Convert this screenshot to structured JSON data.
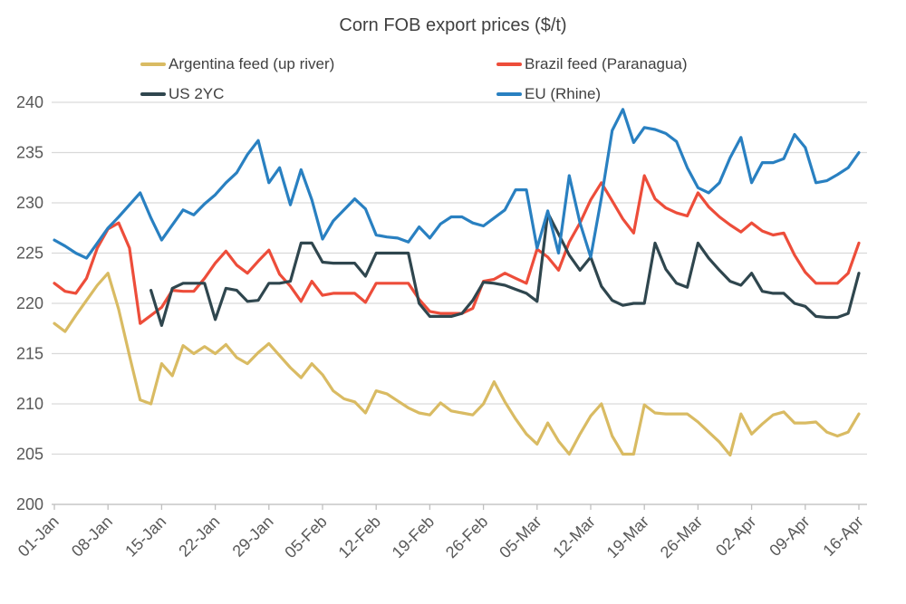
{
  "title": "Corn FOB export prices ($/t)",
  "chart_data": {
    "type": "line",
    "title": "Corn FOB export prices ($/t)",
    "x_tick_labels": [
      "01-Jan",
      "08-Jan",
      "15-Jan",
      "22-Jan",
      "29-Jan",
      "05-Feb",
      "12-Feb",
      "19-Feb",
      "26-Feb",
      "05-Mar",
      "12-Mar",
      "19-Mar",
      "26-Mar",
      "02-Apr",
      "09-Apr",
      "16-Apr"
    ],
    "points_per_tick": 5,
    "ylim": [
      200,
      240
    ],
    "y_ticks": [
      200,
      205,
      210,
      215,
      220,
      225,
      230,
      235,
      240
    ],
    "grid": "horizontal",
    "legend_position": "top",
    "axis_text_color": "#595959",
    "gridline_color": "#d9d9d9",
    "axis_line_color": "#bfbfbf",
    "series": [
      {
        "name": "Argentina feed (up river)",
        "color": "#d9bb63",
        "values": [
          218,
          217.2,
          218.8,
          220.3,
          221.8,
          223,
          219.4,
          214.8,
          210.4,
          210,
          214,
          212.8,
          215.8,
          215,
          215.7,
          215,
          215.9,
          214.6,
          214,
          215.1,
          216,
          214.8,
          213.6,
          212.6,
          214,
          212.9,
          211.3,
          210.5,
          210.2,
          209.1,
          211.3,
          211,
          210.3,
          209.6,
          209.1,
          208.9,
          210.1,
          209.3,
          209.1,
          208.9,
          210,
          212.2,
          210.2,
          208.5,
          207,
          206,
          208.1,
          206.3,
          205,
          207,
          208.8,
          210,
          206.8,
          205,
          205,
          209.9,
          209.1,
          209,
          209,
          209,
          208.2,
          207.2,
          206.2,
          204.9,
          209,
          207,
          208,
          208.9,
          209.2,
          208.1,
          208.1,
          208.2,
          207.2,
          206.8,
          207.2,
          209
        ]
      },
      {
        "name": "Brazil feed (Paranagua)",
        "color": "#ed4d3a",
        "values": [
          222,
          221.2,
          221,
          222.5,
          225.5,
          227.4,
          228,
          225.5,
          218,
          218.8,
          219.6,
          221.3,
          221.2,
          221.2,
          222.5,
          224,
          225.2,
          223.8,
          223,
          224.2,
          225.3,
          222.9,
          221.7,
          220.2,
          222.2,
          220.8,
          221,
          221,
          221,
          220.1,
          222,
          222,
          222,
          222,
          220.4,
          219.2,
          219,
          219,
          219,
          219.5,
          222.2,
          222.4,
          223,
          222.5,
          222,
          225.4,
          224.6,
          223.3,
          226.1,
          228,
          230.3,
          232,
          230.2,
          228.4,
          227,
          232.7,
          230.4,
          229.5,
          229,
          228.7,
          231,
          229.6,
          228.6,
          227.8,
          227.1,
          228,
          227.2,
          226.8,
          227,
          224.8,
          223.1,
          222,
          222,
          222,
          223,
          226
        ]
      },
      {
        "name": "US 2YC",
        "color": "#2f464e",
        "values": [
          null,
          null,
          null,
          null,
          null,
          null,
          null,
          null,
          null,
          221.3,
          217.8,
          221.5,
          222,
          222,
          222,
          218.4,
          221.5,
          221.3,
          220.2,
          220.3,
          222,
          222,
          222.2,
          226,
          226,
          224.1,
          224,
          224,
          224,
          222.7,
          225,
          225,
          225,
          225,
          220,
          218.7,
          218.7,
          218.7,
          219,
          220.3,
          222.1,
          222,
          221.8,
          221.4,
          221,
          220.2,
          229,
          226.9,
          224.8,
          223.3,
          224.6,
          221.7,
          220.3,
          219.8,
          220,
          220,
          226,
          223.4,
          222,
          221.6,
          226,
          224.5,
          223.3,
          222.2,
          221.8,
          223,
          221.2,
          221,
          221,
          220,
          219.7,
          218.7,
          218.6,
          218.6,
          219,
          223
        ]
      },
      {
        "name": "EU (Rhine)",
        "color": "#2980c1",
        "values": [
          226.3,
          225.7,
          225,
          224.5,
          226,
          227.5,
          228.6,
          229.8,
          231,
          228.5,
          226.3,
          227.8,
          229.3,
          228.8,
          229.9,
          230.8,
          232,
          233,
          234.8,
          236.2,
          232,
          233.5,
          229.8,
          233.3,
          230.3,
          226.4,
          228.2,
          229.3,
          230.4,
          229.4,
          226.8,
          226.6,
          226.5,
          226.1,
          227.6,
          226.5,
          227.9,
          228.6,
          228.6,
          228,
          227.7,
          228.5,
          229.3,
          231.3,
          231.3,
          225.5,
          229.2,
          225,
          232.7,
          228,
          224.6,
          230.5,
          237.2,
          239.3,
          236,
          237.5,
          237.3,
          236.9,
          236.1,
          233.5,
          231.5,
          231,
          232,
          234.5,
          236.5,
          232,
          234,
          234,
          234.4,
          236.8,
          235.5,
          232,
          232.2,
          232.8,
          233.5,
          235
        ]
      }
    ]
  }
}
